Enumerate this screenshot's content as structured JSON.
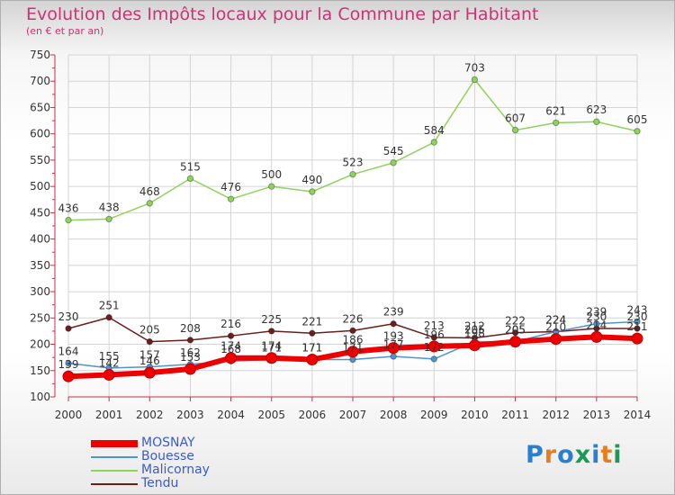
{
  "chart_data": {
    "type": "line",
    "title": "Evolution des Impôts locaux pour la Commune par Habitant",
    "subtitle": "(en € et par an)",
    "xlabel": "",
    "ylabel": "",
    "ylim": [
      100,
      750
    ],
    "yticks": [
      100,
      150,
      200,
      250,
      300,
      350,
      400,
      450,
      500,
      550,
      600,
      650,
      700,
      750
    ],
    "grid": true,
    "legend_position": "bottom-left",
    "categories": [
      "2000",
      "2001",
      "2002",
      "2003",
      "2004",
      "2005",
      "2006",
      "2007",
      "2008",
      "2009",
      "2010",
      "2011",
      "2012",
      "2013",
      "2014"
    ],
    "series": [
      {
        "name": "MOSNAY",
        "color": "#ee0000",
        "values": [
          139,
          142,
          146,
          153,
          174,
          174,
          171,
          186,
          193,
          196,
          198,
          205,
          210,
          214,
          211
        ],
        "labels": [
          "139",
          "142",
          "146",
          "153",
          "174",
          "174",
          "171",
          "186",
          "193",
          "196",
          "198",
          "205",
          "210",
          "214",
          "211"
        ]
      },
      {
        "name": "Bouesse",
        "color": "#4f93cf",
        "values": [
          164,
          155,
          157,
          162,
          168,
          171,
          171,
          171,
          177,
          172,
          205,
          205,
          224,
          239,
          243
        ],
        "labels": [
          "164",
          "155",
          "157",
          "162",
          "168",
          "171",
          "171",
          "171",
          "177",
          "172",
          "205",
          "205",
          "224",
          "239",
          "243"
        ]
      },
      {
        "name": "Malicornay",
        "color": "#8ed35a",
        "values": [
          436,
          438,
          468,
          515,
          476,
          500,
          490,
          523,
          545,
          584,
          703,
          607,
          621,
          623,
          605
        ],
        "labels": [
          "436",
          "438",
          "468",
          "515",
          "476",
          "500",
          "490",
          "523",
          "545",
          "584",
          "703",
          "607",
          "621",
          "623",
          "605"
        ]
      },
      {
        "name": "Tendu",
        "color": "#6a1e1e",
        "values": [
          230,
          251,
          205,
          208,
          216,
          225,
          221,
          226,
          239,
          213,
          212,
          222,
          224,
          230,
          230
        ],
        "labels": [
          "230",
          "251",
          "205",
          "208",
          "216",
          "225",
          "221",
          "226",
          "239",
          "213",
          "212",
          "222",
          "224",
          "230",
          "230"
        ]
      }
    ]
  },
  "logo": {
    "text": "Proxiti",
    "colors": [
      "#2a7fcf",
      "#e87d1e",
      "#2a7fcf",
      "#1c9a55",
      "#2a7fcf",
      "#e87d1e",
      "#1c9a55"
    ]
  }
}
